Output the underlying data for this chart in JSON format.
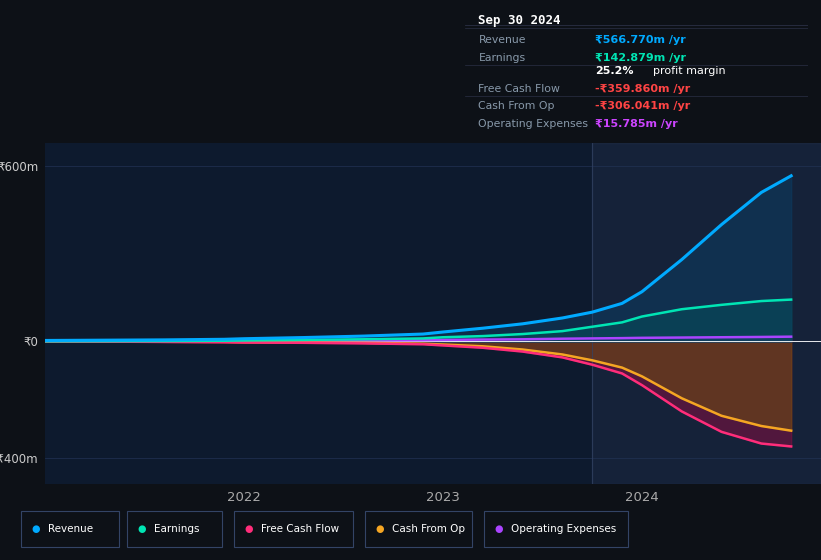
{
  "background_color": "#0d1117",
  "chart_bg": "#0d1a2e",
  "title": "Sep 30 2024",
  "yticks": [
    600,
    0,
    -400
  ],
  "ylim": [
    -490,
    680
  ],
  "xlim": [
    2021.0,
    2024.9
  ],
  "xticks": [
    2022,
    2023,
    2024
  ],
  "series": {
    "Revenue": {
      "color": "#00aaff",
      "fill_color": "#0d3a5e",
      "x": [
        2021.0,
        2021.3,
        2021.6,
        2021.9,
        2022.0,
        2022.3,
        2022.6,
        2022.9,
        2023.0,
        2023.2,
        2023.4,
        2023.6,
        2023.75,
        2023.9,
        2024.0,
        2024.2,
        2024.4,
        2024.6,
        2024.75
      ],
      "y": [
        3,
        4,
        5,
        7,
        9,
        13,
        18,
        25,
        32,
        45,
        60,
        80,
        100,
        130,
        170,
        280,
        400,
        510,
        567
      ]
    },
    "Earnings": {
      "color": "#00e5b4",
      "fill_color": "#006655",
      "x": [
        2021.0,
        2021.3,
        2021.6,
        2021.9,
        2022.0,
        2022.3,
        2022.6,
        2022.9,
        2023.0,
        2023.2,
        2023.4,
        2023.6,
        2023.75,
        2023.9,
        2024.0,
        2024.2,
        2024.4,
        2024.6,
        2024.75
      ],
      "y": [
        0,
        0.5,
        1,
        2,
        3,
        5,
        7,
        10,
        14,
        18,
        25,
        35,
        50,
        65,
        85,
        110,
        125,
        138,
        143
      ]
    },
    "FreeCashFlow": {
      "color": "#ff2d7a",
      "fill_color": "#7a1040",
      "x": [
        2021.0,
        2021.3,
        2021.6,
        2021.9,
        2022.0,
        2022.3,
        2022.6,
        2022.9,
        2023.0,
        2023.2,
        2023.4,
        2023.6,
        2023.75,
        2023.9,
        2024.0,
        2024.2,
        2024.4,
        2024.6,
        2024.75
      ],
      "y": [
        -1,
        -1,
        -2,
        -3,
        -4,
        -5,
        -7,
        -10,
        -14,
        -22,
        -35,
        -55,
        -80,
        -110,
        -150,
        -240,
        -310,
        -350,
        -360
      ]
    },
    "CashFromOp": {
      "color": "#f5a623",
      "fill_color": "#6b4a10",
      "x": [
        2021.0,
        2021.3,
        2021.6,
        2021.9,
        2022.0,
        2022.3,
        2022.6,
        2022.9,
        2023.0,
        2023.2,
        2023.4,
        2023.6,
        2023.75,
        2023.9,
        2024.0,
        2024.2,
        2024.4,
        2024.6,
        2024.75
      ],
      "y": [
        -1,
        -1,
        -1.5,
        -2,
        -3,
        -4,
        -5,
        -8,
        -11,
        -17,
        -28,
        -45,
        -65,
        -90,
        -120,
        -195,
        -255,
        -290,
        -306
      ]
    },
    "OperatingExpenses": {
      "color": "#aa44ff",
      "fill_color": "#5522aa",
      "x": [
        2021.0,
        2021.3,
        2021.6,
        2021.9,
        2022.0,
        2022.3,
        2022.6,
        2022.9,
        2023.0,
        2023.2,
        2023.4,
        2023.6,
        2023.75,
        2023.9,
        2024.0,
        2024.2,
        2024.4,
        2024.6,
        2024.75
      ],
      "y": [
        0,
        0.3,
        0.5,
        1,
        1.5,
        2,
        3,
        4,
        5,
        6,
        7,
        9,
        10,
        11,
        12,
        13,
        14,
        15,
        16
      ]
    }
  },
  "legend": [
    {
      "label": "Revenue",
      "color": "#00aaff"
    },
    {
      "label": "Earnings",
      "color": "#00e5b4"
    },
    {
      "label": "Free Cash Flow",
      "color": "#ff2d7a"
    },
    {
      "label": "Cash From Op",
      "color": "#f5a623"
    },
    {
      "label": "Operating Expenses",
      "color": "#aa44ff"
    }
  ],
  "info_rows": [
    {
      "label": "Revenue",
      "value": "₹566.770m /yr",
      "value_color": "#00aaff"
    },
    {
      "label": "Earnings",
      "value": "₹142.879m /yr",
      "value_color": "#00e5b4"
    },
    {
      "label": "",
      "value": "25.2% profit margin",
      "value_color": "#ffffff",
      "is_margin": true
    },
    {
      "label": "Free Cash Flow",
      "value": "-₹359.860m /yr",
      "value_color": "#ff4444"
    },
    {
      "label": "Cash From Op",
      "value": "-₹306.041m /yr",
      "value_color": "#ff4444"
    },
    {
      "label": "Operating Expenses",
      "value": "₹15.785m /yr",
      "value_color": "#cc44ff"
    }
  ]
}
